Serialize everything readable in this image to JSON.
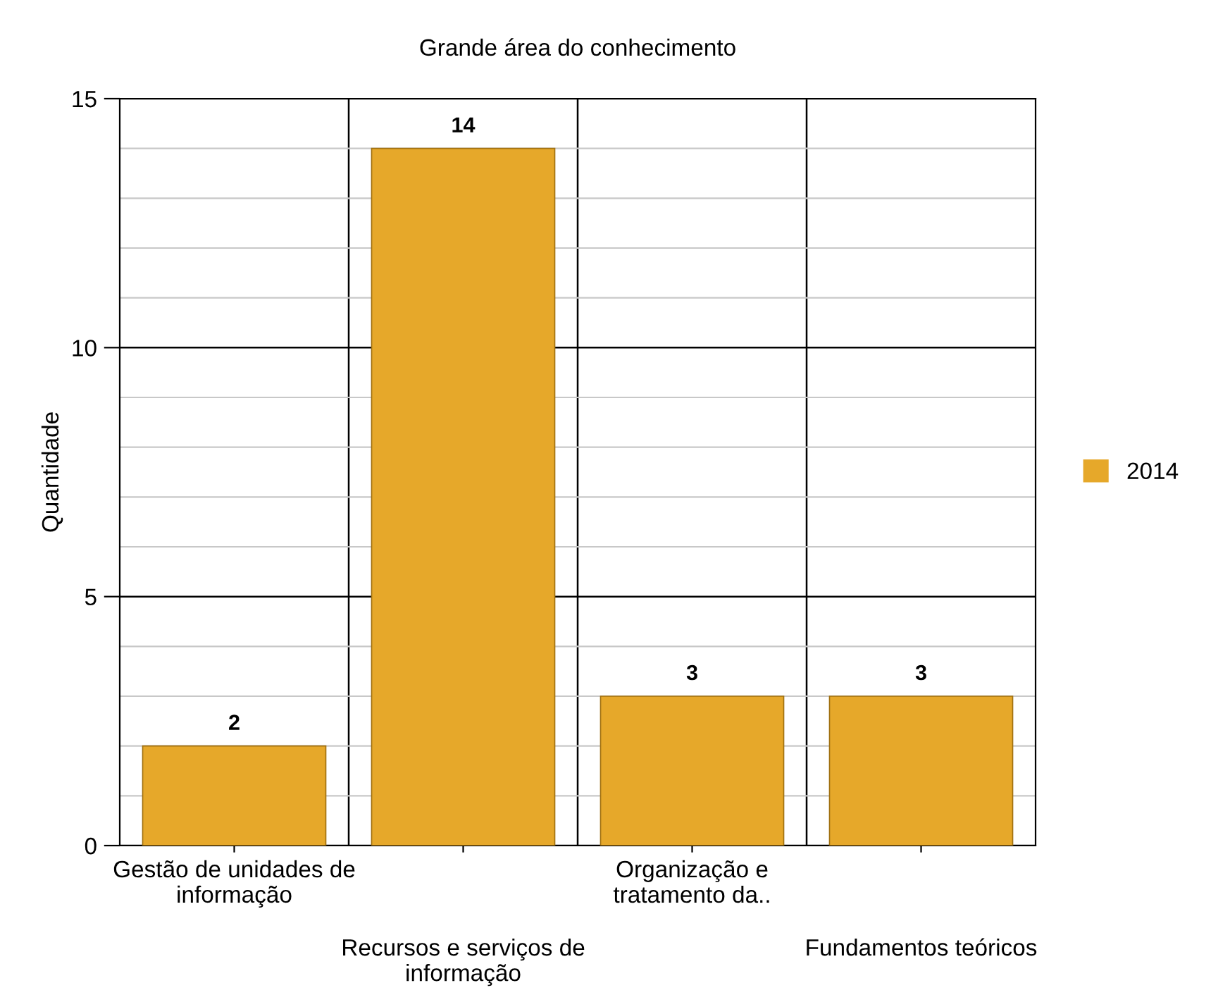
{
  "chart_data": {
    "type": "bar",
    "title": "Grande área do conhecimento",
    "ylabel": "Quantidade",
    "categories": [
      "Gestão de unidades de\ninformação",
      "Recursos e serviços de\ninformação",
      "Organização e\ntratamento da..",
      "Fundamentos teóricos"
    ],
    "series": [
      {
        "name": "2014",
        "color": "#e6a82a",
        "values": [
          2,
          14,
          3,
          3
        ]
      }
    ],
    "ylim": [
      0,
      15
    ],
    "yticks": [
      0,
      5,
      10,
      15
    ],
    "grid": true,
    "legend": "right",
    "data_labels": true
  }
}
